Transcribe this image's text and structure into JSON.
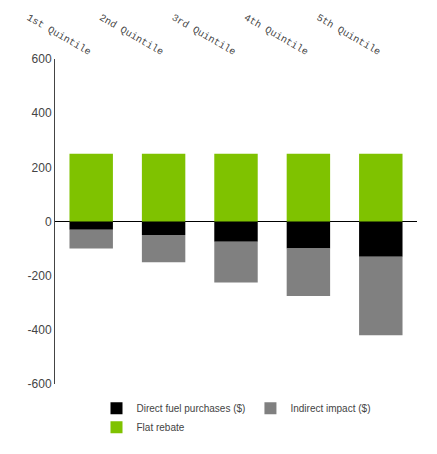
{
  "chart_data": {
    "type": "bar",
    "stacked": true,
    "categories": [
      "1st Quintile",
      "2nd Quintile",
      "3rd Quintile",
      "4th Quintile",
      "5th Quintile"
    ],
    "series": [
      {
        "name": "Direct fuel purchases ($)",
        "color": "#000000",
        "values": [
          -30,
          -50,
          -75,
          -100,
          -130
        ]
      },
      {
        "name": "Indirect impact ($)",
        "color": "#808080",
        "values": [
          -70,
          -100,
          -150,
          -175,
          -290
        ]
      },
      {
        "name": "Flat rebate",
        "color": "#7fc200",
        "values": [
          250,
          250,
          250,
          250,
          250
        ]
      }
    ],
    "ylim": [
      -600,
      600
    ],
    "yticks": [
      -600,
      -400,
      -200,
      0,
      200,
      400,
      600
    ],
    "grid": false,
    "legend": "bottom"
  }
}
